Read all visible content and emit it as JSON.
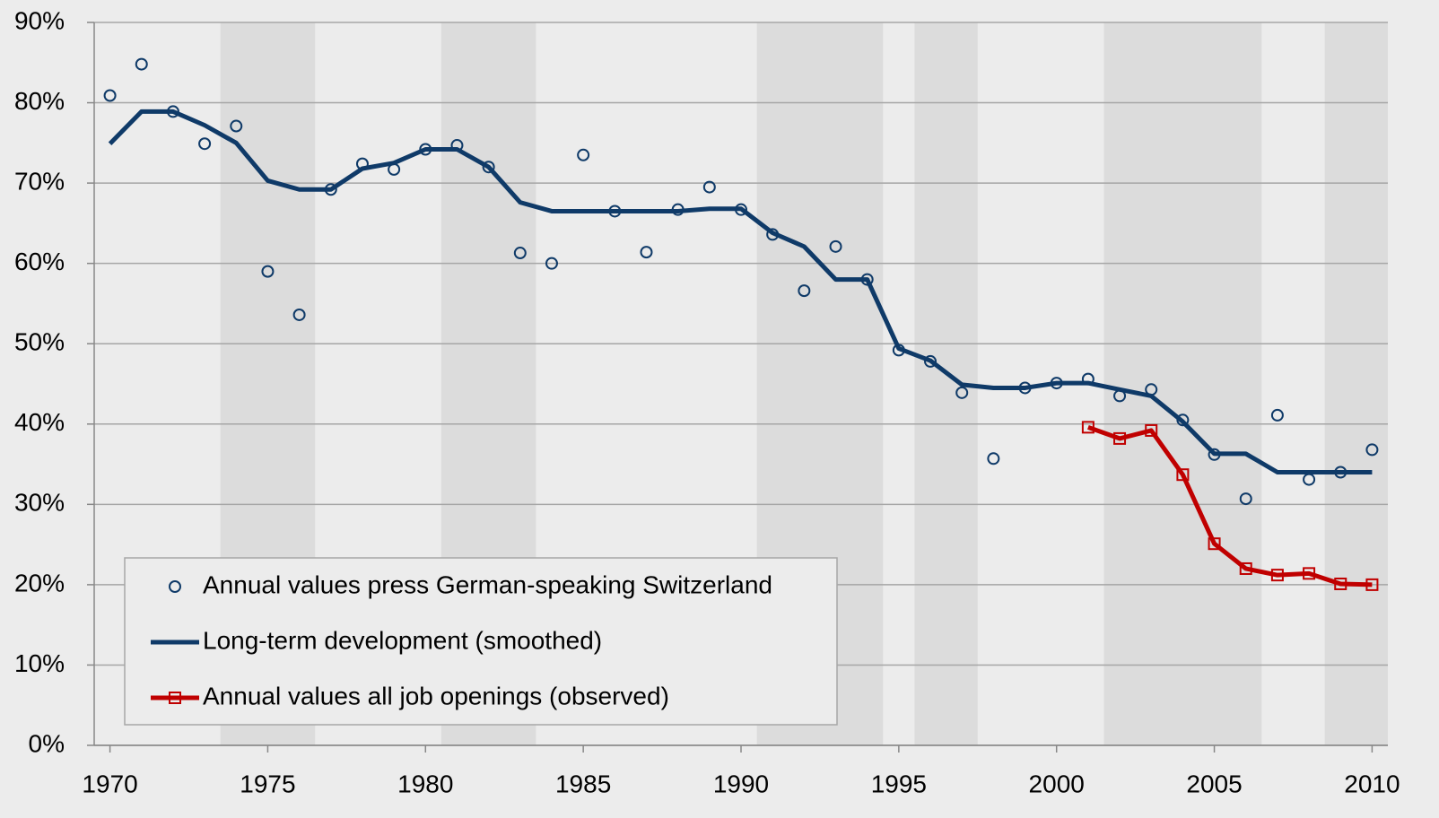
{
  "chart_data": {
    "type": "line",
    "xlim": [
      1969.5,
      2010.5
    ],
    "xticks": [
      1970,
      1975,
      1980,
      1985,
      1990,
      1995,
      2000,
      2005,
      2010
    ],
    "ylim": [
      0,
      90
    ],
    "yticks": [
      {
        "value": 0,
        "label": "0%"
      },
      {
        "value": 10,
        "label": "10%"
      },
      {
        "value": 20,
        "label": "20%"
      },
      {
        "value": 30,
        "label": "30%"
      },
      {
        "value": 40,
        "label": "40%"
      },
      {
        "value": 50,
        "label": "50%"
      },
      {
        "value": 60,
        "label": "60%"
      },
      {
        "value": 70,
        "label": "70%"
      },
      {
        "value": 80,
        "label": "80%"
      },
      {
        "value": 90,
        "label": "90%"
      }
    ],
    "grid": true,
    "legend": "lower left",
    "shaded_periods": [
      [
        1973.5,
        1976.5
      ],
      [
        1980.5,
        1983.5
      ],
      [
        1990.5,
        1994.5
      ],
      [
        1995.5,
        1997.5
      ],
      [
        2001.5,
        2006.5
      ],
      [
        2008.5,
        2010.5
      ]
    ],
    "series": [
      {
        "name": "Annual values press German-speaking Switzerland",
        "color": "#0f3a68",
        "mode": "markers",
        "marker": "circle",
        "x": [
          1970,
          1971,
          1972,
          1973,
          1974,
          1975,
          1976,
          1977,
          1978,
          1979,
          1980,
          1981,
          1982,
          1983,
          1984,
          1985,
          1986,
          1987,
          1988,
          1989,
          1990,
          1991,
          1992,
          1993,
          1994,
          1995,
          1996,
          1997,
          1998,
          1999,
          2000,
          2001,
          2002,
          2003,
          2004,
          2005,
          2006,
          2007,
          2008,
          2009,
          2010
        ],
        "values": [
          80.9,
          84.8,
          78.9,
          74.9,
          77.1,
          59.0,
          53.6,
          69.2,
          72.4,
          71.7,
          74.2,
          74.7,
          72.0,
          61.3,
          60.0,
          73.5,
          66.5,
          61.4,
          66.7,
          69.5,
          66.7,
          63.6,
          56.6,
          62.1,
          58.0,
          49.2,
          47.8,
          43.9,
          35.7,
          44.5,
          45.1,
          45.6,
          43.5,
          44.3,
          40.5,
          36.2,
          30.7,
          41.1,
          33.1,
          34.0,
          36.8
        ]
      },
      {
        "name": "Long-term development (smoothed)",
        "color": "#0f3a68",
        "mode": "line",
        "x": [
          1970,
          1971,
          1972,
          1973,
          1974,
          1975,
          1976,
          1977,
          1978,
          1979,
          1980,
          1981,
          1982,
          1983,
          1984,
          1985,
          1986,
          1987,
          1988,
          1989,
          1990,
          1991,
          1992,
          1993,
          1994,
          1995,
          1996,
          1997,
          1998,
          1999,
          2000,
          2001,
          2002,
          2003,
          2004,
          2005,
          2006,
          2007,
          2008,
          2009,
          2010
        ],
        "values": [
          74.9,
          78.9,
          78.9,
          77.2,
          75.0,
          70.3,
          69.2,
          69.2,
          71.8,
          72.5,
          74.2,
          74.2,
          72.0,
          67.6,
          66.5,
          66.5,
          66.5,
          66.5,
          66.5,
          66.8,
          66.8,
          63.8,
          62.1,
          58.0,
          58.0,
          49.4,
          47.9,
          44.9,
          44.5,
          44.5,
          45.1,
          45.1,
          44.3,
          43.5,
          40.3,
          36.3,
          36.3,
          34.0,
          34.0,
          34.0,
          34.0
        ]
      },
      {
        "name": "Annual values all job openings (observed)",
        "color": "#c00000",
        "mode": "line+markers",
        "marker": "square",
        "x": [
          2001,
          2002,
          2003,
          2004,
          2005,
          2006,
          2007,
          2008,
          2009,
          2010
        ],
        "values": [
          39.6,
          38.2,
          39.2,
          33.7,
          25.1,
          22.0,
          21.2,
          21.4,
          20.1,
          20.0
        ]
      }
    ]
  }
}
